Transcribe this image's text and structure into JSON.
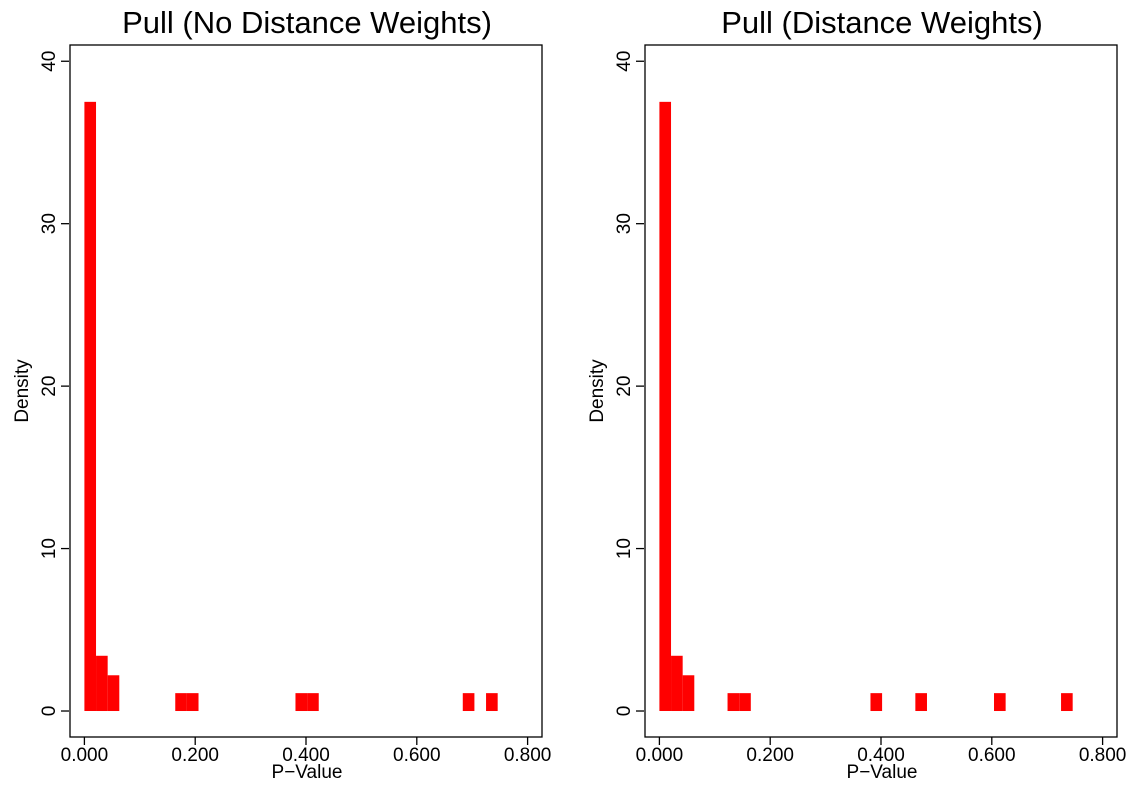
{
  "chart_data": [
    {
      "type": "bar",
      "title": "Pull (No Distance Weights)",
      "xlabel": "P−Value",
      "ylabel": "Density",
      "xlim": [
        -0.026,
        0.826
      ],
      "ylim": [
        -1.6,
        41
      ],
      "x_ticks": [
        0,
        0.2,
        0.4,
        0.6,
        0.8
      ],
      "x_tick_labels": [
        "0.000",
        "0.200",
        "0.400",
        "0.600",
        "0.800"
      ],
      "y_ticks": [
        0,
        10,
        20,
        30,
        40
      ],
      "y_tick_labels": [
        "0",
        "10",
        "20",
        "30",
        "40"
      ],
      "bar_color": "#ff0000",
      "grid": false,
      "bars": [
        {
          "x0": 0.0,
          "x1": 0.021,
          "density": 37.5
        },
        {
          "x0": 0.021,
          "x1": 0.042,
          "density": 3.4
        },
        {
          "x0": 0.042,
          "x1": 0.063,
          "density": 2.2
        },
        {
          "x0": 0.164,
          "x1": 0.185,
          "density": 1.1
        },
        {
          "x0": 0.185,
          "x1": 0.206,
          "density": 1.1
        },
        {
          "x0": 0.381,
          "x1": 0.402,
          "density": 1.1
        },
        {
          "x0": 0.402,
          "x1": 0.423,
          "density": 1.1
        },
        {
          "x0": 0.683,
          "x1": 0.704,
          "density": 1.1
        },
        {
          "x0": 0.725,
          "x1": 0.746,
          "density": 1.1
        }
      ]
    },
    {
      "type": "bar",
      "title": "Pull (Distance Weights)",
      "xlabel": "P−Value",
      "ylabel": "Density",
      "xlim": [
        -0.026,
        0.826
      ],
      "ylim": [
        -1.6,
        41
      ],
      "x_ticks": [
        0,
        0.2,
        0.4,
        0.6,
        0.8
      ],
      "x_tick_labels": [
        "0.000",
        "0.200",
        "0.400",
        "0.600",
        "0.800"
      ],
      "y_ticks": [
        0,
        10,
        20,
        30,
        40
      ],
      "y_tick_labels": [
        "0",
        "10",
        "20",
        "30",
        "40"
      ],
      "bar_color": "#ff0000",
      "grid": false,
      "bars": [
        {
          "x0": 0.0,
          "x1": 0.021,
          "density": 37.5
        },
        {
          "x0": 0.021,
          "x1": 0.042,
          "density": 3.4
        },
        {
          "x0": 0.042,
          "x1": 0.063,
          "density": 2.2
        },
        {
          "x0": 0.123,
          "x1": 0.144,
          "density": 1.1
        },
        {
          "x0": 0.144,
          "x1": 0.165,
          "density": 1.1
        },
        {
          "x0": 0.381,
          "x1": 0.402,
          "density": 1.1
        },
        {
          "x0": 0.462,
          "x1": 0.483,
          "density": 1.1
        },
        {
          "x0": 0.604,
          "x1": 0.625,
          "density": 1.1
        },
        {
          "x0": 0.725,
          "x1": 0.746,
          "density": 1.1
        }
      ]
    }
  ]
}
